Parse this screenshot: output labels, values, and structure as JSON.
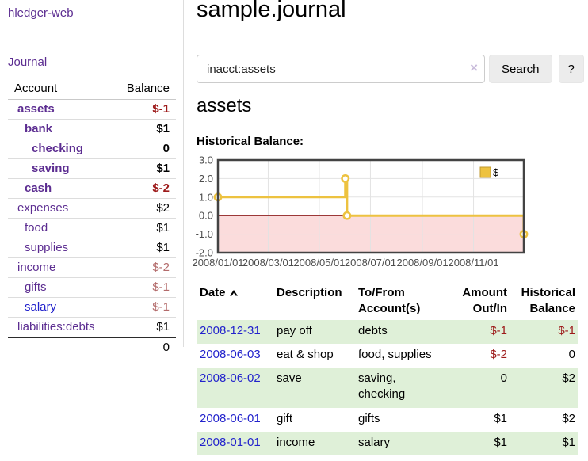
{
  "app": {
    "title": "hledger-web"
  },
  "sidebar": {
    "journal_label": "Journal",
    "accounts_table": {
      "headers": [
        "Account",
        "Balance"
      ],
      "rows": [
        {
          "account": "assets",
          "level": 1,
          "bold": true,
          "balance": "$-1",
          "balance_style": "neg-strong"
        },
        {
          "account": "bank",
          "level": 2,
          "bold": true,
          "balance": "$1",
          "balance_style": ""
        },
        {
          "account": "checking",
          "level": 3,
          "bold": true,
          "balance": "0",
          "balance_style": ""
        },
        {
          "account": "saving",
          "level": 3,
          "bold": true,
          "balance": "$1",
          "balance_style": ""
        },
        {
          "account": "cash",
          "level": 2,
          "bold": true,
          "balance": "$-2",
          "balance_style": "neg-strong"
        },
        {
          "account": "expenses",
          "level": 1,
          "bold": false,
          "balance": "$2",
          "balance_style": ""
        },
        {
          "account": "food",
          "level": 2,
          "bold": false,
          "balance": "$1",
          "balance_style": ""
        },
        {
          "account": "supplies",
          "level": 2,
          "bold": false,
          "balance": "$1",
          "balance_style": ""
        },
        {
          "account": "income",
          "level": 1,
          "bold": false,
          "balance": "$-2",
          "balance_style": "neg-muted"
        },
        {
          "account": "gifts",
          "level": 2,
          "bold": false,
          "balance": "$-1",
          "balance_style": "neg-muted"
        },
        {
          "account": "salary",
          "level": 2,
          "bold": false,
          "link_style": "unvisited",
          "balance": "$-1",
          "balance_style": "neg-muted"
        },
        {
          "account": "liabilities:debts",
          "level": 1,
          "bold": false,
          "balance": "$1",
          "balance_style": ""
        }
      ],
      "total": "0"
    }
  },
  "header": {
    "title": "sample.journal"
  },
  "search": {
    "value": "inacct:assets",
    "clear_icon": "×",
    "button_label": "Search",
    "help_label": "?"
  },
  "account_page": {
    "title": "assets",
    "chart_label": "Historical Balance:"
  },
  "chart_data": {
    "type": "line",
    "title": "Historical Balance",
    "style": "steps",
    "series": [
      {
        "name": "$",
        "color": "#edc240",
        "points": [
          {
            "date": "2008-01-01",
            "x_days": 0,
            "y": 1
          },
          {
            "date": "2008-06-01",
            "x_days": 152,
            "y": 2
          },
          {
            "date": "2008-06-03",
            "x_days": 154,
            "y": 0
          },
          {
            "date": "2008-12-31",
            "x_days": 365,
            "y": -1
          }
        ]
      }
    ],
    "xlim_days": [
      0,
      365
    ],
    "ylim": [
      -2.0,
      3.0
    ],
    "yticks": [
      "3.0",
      "2.0",
      "1.0",
      "0.0",
      "-1.0",
      "-2.0"
    ],
    "ytick_values": [
      3,
      2,
      1,
      0,
      -1,
      -2
    ],
    "xticks": [
      {
        "label": "2008/01/01",
        "x_days": 0
      },
      {
        "label": "2008/03/01",
        "x_days": 60
      },
      {
        "label": "2008/05/01",
        "x_days": 121
      },
      {
        "label": "2008/07/01",
        "x_days": 182
      },
      {
        "label": "2008/09/01",
        "x_days": 244
      },
      {
        "label": "2008/11/01",
        "x_days": 305
      }
    ],
    "legend": {
      "label": "$",
      "position": "top-right"
    },
    "grid": true
  },
  "register_table": {
    "headers": [
      {
        "label": "Date",
        "sorted": "asc"
      },
      {
        "label": "Description"
      },
      {
        "label": "To/From Account(s)"
      },
      {
        "label": "Amount Out/In",
        "align": "right"
      },
      {
        "label": "Historical Balance",
        "align": "right"
      }
    ],
    "rows": [
      {
        "date": "2008-12-31",
        "description": "pay off",
        "accounts": "debts",
        "amount": "$-1",
        "balance": "$-1",
        "stripe": true
      },
      {
        "date": "2008-06-03",
        "description": "eat & shop",
        "accounts": "food, supplies",
        "amount": "$-2",
        "balance": "0",
        "stripe": false
      },
      {
        "date": "2008-06-02",
        "description": "save",
        "accounts": "saving, checking",
        "amount": "0",
        "balance": "$2",
        "stripe": true
      },
      {
        "date": "2008-06-01",
        "description": "gift",
        "accounts": "gifts",
        "amount": "$1",
        "balance": "$2",
        "stripe": false
      },
      {
        "date": "2008-01-01",
        "description": "income",
        "accounts": "salary",
        "amount": "$1",
        "balance": "$1",
        "stripe": true
      }
    ]
  },
  "colors": {
    "link_purple": "#5c2d91",
    "link_blue": "#2222cc",
    "negative": "#9d1a1a",
    "negative_muted": "#b36b6b",
    "stripe_green": "#dff0d8",
    "chart_line": "#edc240",
    "chart_negative_fill": "#fbdcdc",
    "chart_zero_line": "#800000",
    "chart_border": "#434343",
    "chart_grid": "#e3e3e3",
    "chart_text": "#4d4d4d"
  }
}
